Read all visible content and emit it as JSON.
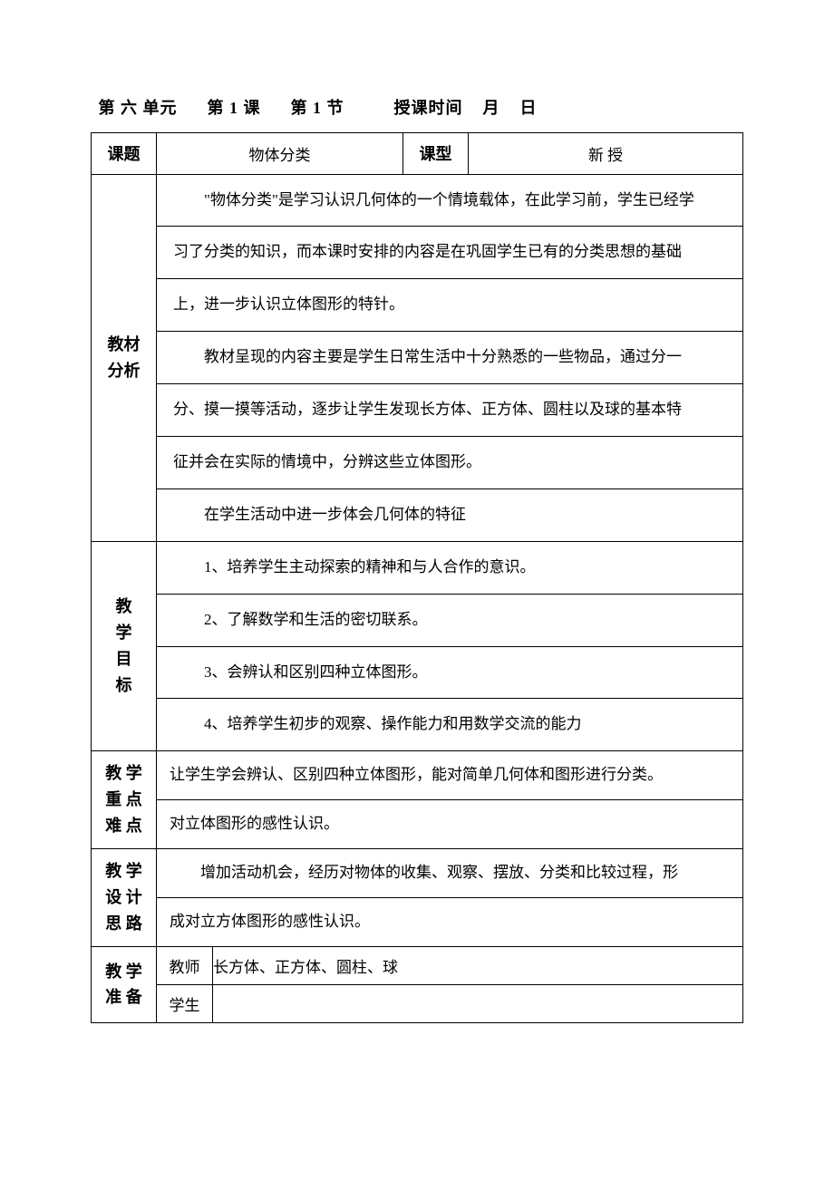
{
  "page": {
    "background_color": "#ffffff",
    "border_color": "#000000",
    "font_family": "SimSun",
    "body_fontsize": 17,
    "label_fontsize": 18,
    "header_fontsize": 18
  },
  "header": {
    "unit_label": "第 六 单元",
    "lesson_label": "第 1 课",
    "section_label": "第 1 节",
    "time_label": "授课时间",
    "month_label": "月",
    "day_label": "日"
  },
  "title_row": {
    "topic_label": "课题",
    "topic_value": "物体分类",
    "type_label": "课型",
    "type_value": "新   授"
  },
  "analysis": {
    "label_line1": "教材",
    "label_line2": "分析",
    "lines": [
      "\"物体分类\"是学习认识几何体的一个情境载体，在此学习前，学生已经学",
      "习了分类的知识，而本课时安排的内容是在巩固学生已有的分类思想的基础",
      "上，进一步认识立体图形的特针。",
      "教材呈现的内容主要是学生日常生活中十分熟悉的一些物品，通过分一",
      "分、摸一摸等活动，逐步让学生发现长方体、正方体、圆柱以及球的基本特",
      "征并会在实际的情境中，分辨这些立体图形。",
      "在学生活动中进一步体会几何体的特征"
    ],
    "indent_flags": [
      true,
      false,
      false,
      true,
      false,
      false,
      true
    ]
  },
  "objectives": {
    "label_chars": [
      "教",
      "学",
      "目",
      "标"
    ],
    "lines": [
      "1、培养学生主动探索的精神和与人合作的意识。",
      "2、了解数学和生活的密切联系。",
      "3、会辨认和区别四种立体图形。",
      "4、培养学生初步的观察、操作能力和用数学交流的能力"
    ]
  },
  "keypoints": {
    "label_line1": "教 学",
    "label_line2": "重 点",
    "label_line3": "难 点",
    "lines": [
      "让学生学会辨认、区别四种立体图形，能对简单几何体和图形进行分类。",
      "对立体图形的感性认识。"
    ]
  },
  "design": {
    "label_line1": "教 学",
    "label_line2": "设 计",
    "label_line3": "思 路",
    "lines": [
      "增加活动机会，经历对物体的收集、观察、摆放、分类和比较过程，形",
      "成对立方体图形的感性认识。"
    ],
    "indent_flags": [
      true,
      false
    ]
  },
  "prep": {
    "label_line1": "教 学",
    "label_line2": "准 备",
    "teacher_label": "教师",
    "teacher_value": "长方体、正方体、圆柱、球",
    "student_label": "学生",
    "student_value": ""
  }
}
